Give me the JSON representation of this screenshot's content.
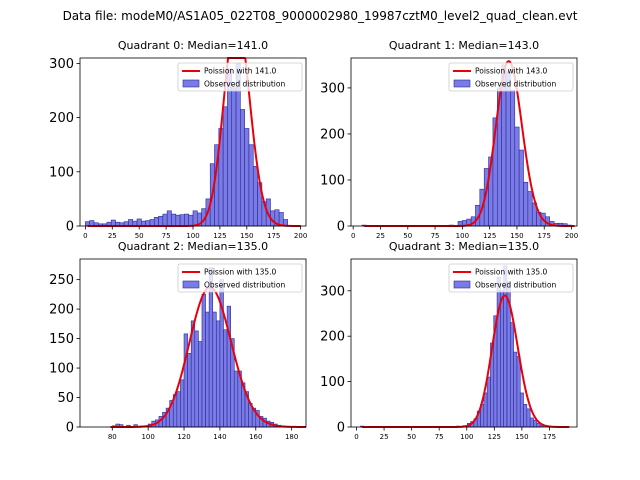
{
  "figure_title": "Data file: modeM0/AS1A05_022T08_9000002980_19987cztM0_level2_quad_clean.evt",
  "colors": {
    "bar_fill": "#7b7be6",
    "bar_edge": "#2a2a9a",
    "curve": "#e8000b"
  },
  "legend_labels": {
    "observed": "Observed distribution"
  },
  "chart_data": [
    {
      "type": "bar",
      "title": "Quadrant 0: Median=141.0",
      "poisson_label": "Poission with 141.0",
      "poisson_mean": 141.0,
      "bin_width": 4,
      "xlim": [
        -5,
        205
      ],
      "ylim": [
        0,
        310
      ],
      "xticks": [
        0,
        25,
        50,
        75,
        100,
        125,
        150,
        175,
        200
      ],
      "yticks": [
        0,
        100,
        200,
        300
      ],
      "x": [
        2,
        6,
        10,
        14,
        18,
        22,
        26,
        30,
        34,
        38,
        42,
        46,
        50,
        54,
        58,
        62,
        66,
        70,
        74,
        78,
        82,
        86,
        90,
        94,
        98,
        102,
        106,
        110,
        114,
        118,
        122,
        126,
        130,
        134,
        138,
        142,
        146,
        150,
        154,
        158,
        162,
        166,
        170,
        174,
        178,
        182,
        186
      ],
      "values": [
        8,
        10,
        6,
        4,
        4,
        7,
        11,
        7,
        6,
        8,
        12,
        9,
        13,
        9,
        10,
        12,
        16,
        18,
        22,
        28,
        22,
        20,
        21,
        22,
        20,
        28,
        24,
        32,
        50,
        115,
        150,
        180,
        220,
        290,
        255,
        300,
        215,
        180,
        150,
        110,
        80,
        45,
        50,
        28,
        30,
        25,
        12
      ]
    },
    {
      "type": "bar",
      "title": "Quadrant 1: Median=143.0",
      "poisson_label": "Poission with 143.0",
      "poisson_mean": 143.0,
      "bin_width": 4,
      "xlim": [
        -2,
        205
      ],
      "ylim": [
        0,
        365
      ],
      "xticks": [
        0,
        25,
        50,
        75,
        100,
        125,
        150,
        175,
        200
      ],
      "yticks": [
        0,
        100,
        200,
        300
      ],
      "x": [
        10,
        90,
        98,
        102,
        106,
        110,
        114,
        118,
        122,
        126,
        130,
        134,
        138,
        142,
        146,
        150,
        154,
        158,
        162,
        166,
        170,
        174,
        178,
        182,
        186,
        190,
        194,
        198
      ],
      "values": [
        2,
        2,
        10,
        12,
        15,
        20,
        45,
        80,
        125,
        150,
        235,
        300,
        350,
        335,
        295,
        215,
        165,
        95,
        75,
        50,
        30,
        28,
        20,
        10,
        6,
        6,
        5,
        2
      ]
    },
    {
      "type": "bar",
      "title": "Quadrant 2: Median=135.0",
      "poisson_label": "Poission with 135.0",
      "poisson_mean": 135.0,
      "bin_width": 2,
      "xlim": [
        62,
        188
      ],
      "ylim": [
        0,
        285
      ],
      "xticks": [
        80,
        100,
        120,
        140,
        160,
        180
      ],
      "yticks": [
        0,
        50,
        100,
        150,
        200,
        250
      ],
      "x": [
        81,
        83,
        85,
        89,
        93,
        97,
        101,
        103,
        105,
        107,
        109,
        111,
        113,
        115,
        117,
        119,
        121,
        123,
        125,
        127,
        129,
        131,
        133,
        135,
        137,
        139,
        141,
        143,
        145,
        147,
        149,
        151,
        153,
        155,
        157,
        159,
        161,
        163,
        165,
        167,
        169,
        171,
        173,
        175
      ],
      "values": [
        2,
        5,
        4,
        3,
        4,
        2,
        5,
        10,
        12,
        18,
        25,
        32,
        45,
        55,
        60,
        80,
        158,
        125,
        180,
        163,
        145,
        225,
        195,
        270,
        195,
        180,
        250,
        165,
        205,
        150,
        95,
        95,
        75,
        60,
        40,
        32,
        28,
        18,
        15,
        10,
        8,
        5,
        3,
        2
      ]
    },
    {
      "type": "bar",
      "title": "Quadrant 3: Median=135.0",
      "poisson_label": "Poission with 135.0",
      "poisson_mean": 135.0,
      "bin_width": 3,
      "xlim": [
        -5,
        200
      ],
      "ylim": [
        0,
        370
      ],
      "xticks": [
        0,
        25,
        50,
        75,
        100,
        125,
        150,
        175
      ],
      "yticks": [
        0,
        100,
        200,
        300
      ],
      "x": [
        5,
        92,
        98,
        102,
        105,
        108,
        111,
        114,
        117,
        120,
        123,
        126,
        129,
        132,
        135,
        138,
        141,
        144,
        147,
        150,
        153,
        156,
        159,
        162,
        165,
        168
      ],
      "values": [
        2,
        2,
        3,
        8,
        12,
        18,
        35,
        50,
        75,
        110,
        185,
        245,
        330,
        300,
        355,
        320,
        230,
        165,
        155,
        75,
        50,
        40,
        20,
        15,
        8,
        3
      ]
    }
  ]
}
